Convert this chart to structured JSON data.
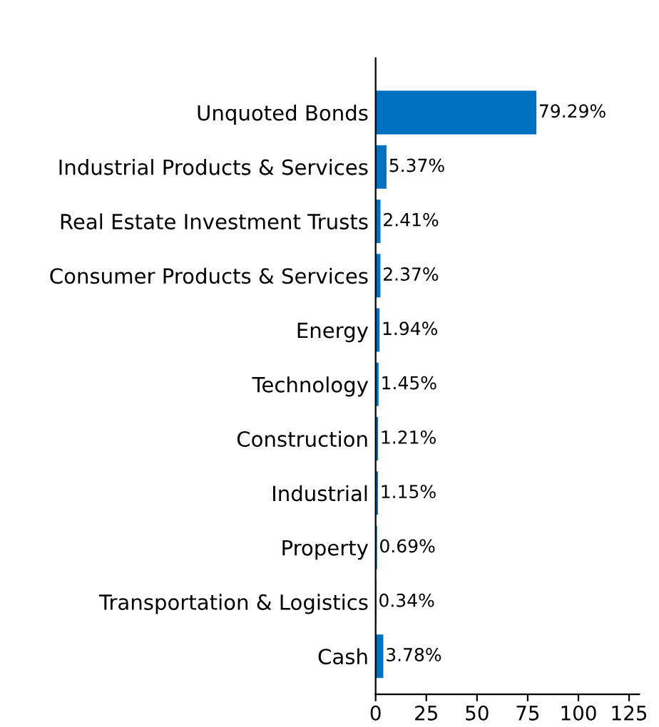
{
  "chart_data": {
    "type": "bar",
    "orientation": "horizontal",
    "categories": [
      "Unquoted Bonds",
      "Industrial Products & Services",
      "Real Estate Investment Trusts",
      "Consumer Products & Services",
      "Energy",
      "Technology",
      "Construction",
      "Industrial",
      "Property",
      "Transportation & Logistics",
      "Cash"
    ],
    "values": [
      79.29,
      5.37,
      2.41,
      2.37,
      1.94,
      1.45,
      1.21,
      1.15,
      0.69,
      0.34,
      3.78
    ],
    "value_labels": [
      "79.29%",
      "5.37%",
      "2.41%",
      "2.37%",
      "1.94%",
      "1.45%",
      "1.21%",
      "1.15%",
      "0.69%",
      "0.34%",
      "3.78%"
    ],
    "color": "#0070c0",
    "xlim": [
      0,
      130
    ],
    "xticks": [
      0,
      25,
      50,
      75,
      100,
      125
    ],
    "grid": false,
    "legend": false
  }
}
